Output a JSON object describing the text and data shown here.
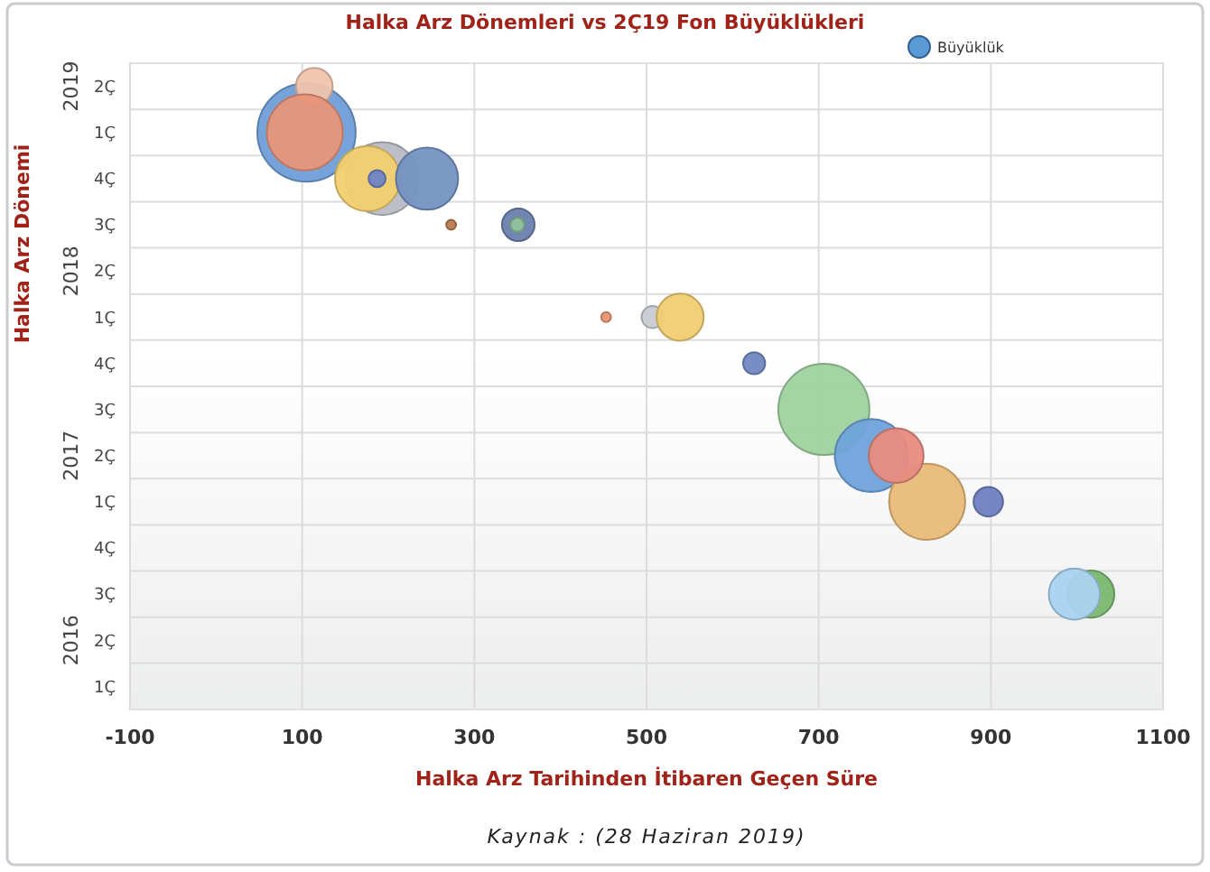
{
  "chart_data": {
    "type": "bubble",
    "orientation": "horizontal",
    "title": "Halka Arz Dönemleri vs 2Ç19 Fon Büyüklükleri",
    "xlabel": "Halka Arz Tarihinden İtibaren Geçen Süre",
    "ylabel": "Halka Arz Dönemi",
    "annotations": [
      "Kaynak : (28 Haziran 2019)"
    ],
    "xlim": [
      -100,
      1100
    ],
    "xticks": [
      -100,
      100,
      300,
      500,
      700,
      900,
      1100
    ],
    "categories": [
      "2Ç",
      "1Ç",
      "4Ç",
      "3Ç",
      "2Ç",
      "1Ç",
      "4Ç",
      "3Ç",
      "2Ç",
      "1Ç",
      "4Ç",
      "3Ç",
      "2Ç",
      "1Ç"
    ],
    "y2_categories": [
      "2019",
      null,
      null,
      null,
      "2018",
      null,
      null,
      null,
      "2017",
      null,
      null,
      null,
      "2016",
      null
    ],
    "grid": true,
    "legend": "top right",
    "series": [
      {
        "name": "Büyüklük",
        "color": "#5b9bd5",
        "values": [
          null,
          105,
          193,
          273,
          null,
          453,
          625,
          706,
          761,
          826,
          null,
          1016,
          null,
          null
        ],
        "sizes": [
          null,
          1,
          0.55,
          0.01,
          null,
          0.01,
          0.05,
          0.86,
          0.55,
          0.6,
          null,
          0.23,
          null,
          null
        ],
        "colors": [
          null,
          "#6f9fd8",
          "#b8bcc4",
          "#b87a50",
          null,
          "#e8956f",
          "#7088c2",
          "#9fd19f",
          "#6fa3dc",
          "#e8ba78",
          null,
          "#7ab870",
          null,
          null
        ]
      },
      {
        "values": [
          114,
          103,
          176,
          351,
          null,
          507,
          null,
          null,
          790,
          897,
          null,
          997,
          null,
          null
        ],
        "sizes": [
          0.14,
          0.6,
          0.44,
          0.11,
          null,
          0.05,
          null,
          null,
          0.31,
          0.09,
          null,
          0.27,
          null,
          null
        ],
        "colors": [
          "#f0c4ae",
          "#e8957a",
          "#f2cf6f",
          "#6a7fae",
          null,
          "#c8ccd2",
          null,
          null,
          "#e88b80",
          "#6f7fbf",
          null,
          "#a9d3f0",
          null,
          null
        ]
      },
      {
        "values": [
          null,
          null,
          187,
          350,
          null,
          539,
          null,
          null,
          null,
          null,
          null,
          null,
          null,
          null
        ],
        "sizes": [
          null,
          null,
          0.03,
          0.02,
          null,
          0.23,
          null,
          null,
          null,
          null,
          null,
          null,
          null,
          null
        ],
        "colors": [
          null,
          null,
          "#6d83c4",
          "#8fc39a",
          null,
          "#f0cd72",
          null,
          null,
          null,
          null,
          null,
          null,
          null,
          null
        ]
      },
      {
        "values": [
          null,
          null,
          245,
          null,
          null,
          null,
          null,
          null,
          null,
          null,
          null,
          null,
          null,
          null
        ],
        "sizes": [
          null,
          null,
          0.4,
          null,
          null,
          null,
          null,
          null,
          null,
          null,
          null,
          null,
          null,
          null
        ],
        "colors": [
          null,
          null,
          "#7592c2",
          null,
          null,
          null,
          null,
          null,
          null,
          null,
          null,
          null,
          null,
          null
        ]
      }
    ]
  }
}
